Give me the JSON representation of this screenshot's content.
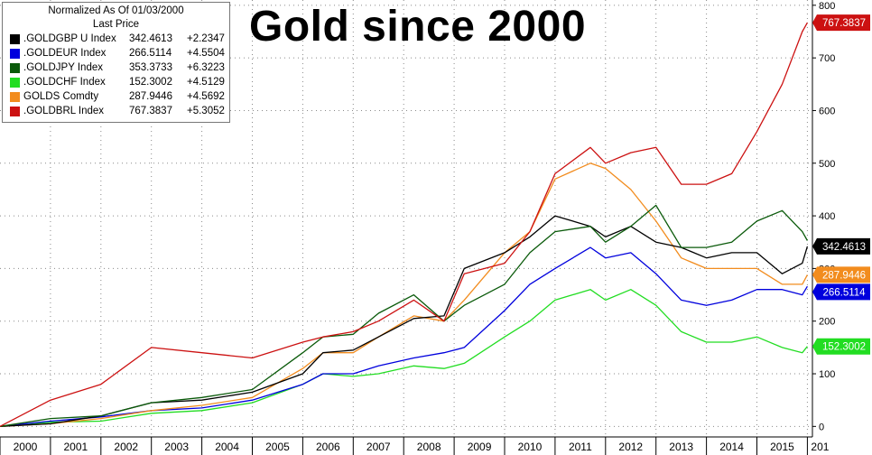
{
  "chart_data": {
    "type": "line",
    "title": "Gold since 2000",
    "legend_header": [
      "Normalized As Of 01/03/2000",
      "Last Price"
    ],
    "x_ticks": [
      "2000",
      "2001",
      "2002",
      "2003",
      "2004",
      "2005",
      "2006",
      "2007",
      "2008",
      "2009",
      "2010",
      "2011",
      "2012",
      "2013",
      "2014",
      "2015",
      "201"
    ],
    "y_ticks": [
      "0",
      "100",
      "200",
      "300",
      "400",
      "500",
      "600",
      "700",
      "800"
    ],
    "ylim": [
      -20,
      810
    ],
    "grid": true,
    "series": [
      {
        "name": ".GOLDGBP U Index",
        "last": "342.4613",
        "change": "+2.2347",
        "color": "#000000",
        "x": [
          2000.0,
          2001.0,
          2002.0,
          2003.0,
          2004.0,
          2005.0,
          2006.0,
          2006.4,
          2007.0,
          2007.5,
          2008.2,
          2008.8,
          2009.2,
          2010.0,
          2010.5,
          2011.0,
          2011.7,
          2012.0,
          2012.5,
          2013.0,
          2013.5,
          2014.0,
          2014.5,
          2015.0,
          2015.5,
          2015.9,
          2016.0
        ],
        "y": [
          0,
          5,
          20,
          45,
          50,
          65,
          100,
          140,
          145,
          170,
          205,
          210,
          300,
          330,
          360,
          400,
          380,
          360,
          380,
          350,
          340,
          320,
          330,
          330,
          290,
          310,
          342
        ]
      },
      {
        "name": ".GOLDEUR Index",
        "last": "266.5114",
        "change": "+4.5504",
        "color": "#0000dd",
        "x": [
          2000.0,
          2001.0,
          2002.0,
          2003.0,
          2004.0,
          2005.0,
          2006.0,
          2006.4,
          2007.0,
          2007.5,
          2008.2,
          2008.8,
          2009.2,
          2010.0,
          2010.5,
          2011.0,
          2011.7,
          2012.0,
          2012.5,
          2013.0,
          2013.5,
          2014.0,
          2014.5,
          2015.0,
          2015.5,
          2015.9,
          2016.0
        ],
        "y": [
          0,
          10,
          18,
          30,
          35,
          50,
          80,
          100,
          100,
          115,
          130,
          140,
          150,
          220,
          270,
          300,
          340,
          320,
          330,
          290,
          240,
          230,
          240,
          260,
          260,
          250,
          266
        ]
      },
      {
        "name": ".GOLDJPY Index",
        "last": "353.3733",
        "change": "+6.3223",
        "color": "#0a5a0a",
        "x": [
          2000.0,
          2001.0,
          2002.0,
          2003.0,
          2004.0,
          2005.0,
          2006.0,
          2006.4,
          2007.0,
          2007.5,
          2008.2,
          2008.8,
          2009.2,
          2010.0,
          2010.5,
          2011.0,
          2011.7,
          2012.0,
          2012.5,
          2013.0,
          2013.5,
          2014.0,
          2014.5,
          2015.0,
          2015.5,
          2015.9,
          2016.0
        ],
        "y": [
          0,
          15,
          20,
          45,
          55,
          70,
          140,
          170,
          175,
          215,
          250,
          200,
          230,
          270,
          330,
          370,
          380,
          350,
          380,
          420,
          340,
          340,
          350,
          390,
          410,
          370,
          353
        ]
      },
      {
        "name": ".GOLDCHF Index",
        "last": "152.3002",
        "change": "+4.5129",
        "color": "#22dd22",
        "x": [
          2000.0,
          2001.0,
          2002.0,
          2003.0,
          2004.0,
          2005.0,
          2006.0,
          2006.4,
          2007.0,
          2007.5,
          2008.2,
          2008.8,
          2009.2,
          2010.0,
          2010.5,
          2011.0,
          2011.7,
          2012.0,
          2012.5,
          2013.0,
          2013.5,
          2014.0,
          2014.5,
          2015.0,
          2015.5,
          2015.9,
          2016.0
        ],
        "y": [
          0,
          8,
          10,
          25,
          30,
          45,
          80,
          100,
          95,
          100,
          115,
          110,
          120,
          170,
          200,
          240,
          260,
          240,
          260,
          230,
          180,
          160,
          160,
          170,
          150,
          140,
          152
        ]
      },
      {
        "name": "GOLDS Comdty",
        "last": "287.9446",
        "change": "+4.5692",
        "color": "#f28c1e",
        "x": [
          2000.0,
          2001.0,
          2002.0,
          2003.0,
          2004.0,
          2005.0,
          2006.0,
          2006.4,
          2007.0,
          2007.5,
          2008.2,
          2008.8,
          2009.2,
          2010.0,
          2010.5,
          2011.0,
          2011.7,
          2012.0,
          2012.5,
          2013.0,
          2013.5,
          2014.0,
          2014.5,
          2015.0,
          2015.5,
          2015.9,
          2016.0
        ],
        "y": [
          0,
          5,
          15,
          30,
          40,
          55,
          110,
          140,
          140,
          170,
          210,
          200,
          240,
          330,
          370,
          470,
          500,
          490,
          450,
          390,
          320,
          300,
          300,
          300,
          270,
          270,
          288
        ]
      },
      {
        "name": ".GOLDBRL Index",
        "last": "767.3837",
        "change": "+5.3052",
        "color": "#cc1111",
        "x": [
          2000.0,
          2001.0,
          2002.0,
          2003.0,
          2004.0,
          2005.0,
          2006.0,
          2006.4,
          2007.0,
          2007.5,
          2008.2,
          2008.8,
          2009.2,
          2010.0,
          2010.5,
          2011.0,
          2011.7,
          2012.0,
          2012.5,
          2013.0,
          2013.5,
          2014.0,
          2014.5,
          2015.0,
          2015.5,
          2015.9,
          2016.0
        ],
        "y": [
          0,
          50,
          80,
          150,
          140,
          130,
          160,
          170,
          180,
          200,
          240,
          200,
          290,
          310,
          370,
          480,
          530,
          500,
          520,
          530,
          460,
          460,
          480,
          560,
          650,
          750,
          767
        ]
      }
    ],
    "value_labels": [
      {
        "text": "767.3837",
        "series": 5
      },
      {
        "text": "342.4613",
        "series": 0
      },
      {
        "text": "287.9446",
        "series": 4
      },
      {
        "text": "266.5114",
        "series": 1
      },
      {
        "text": "152.3002",
        "series": 3
      }
    ]
  }
}
